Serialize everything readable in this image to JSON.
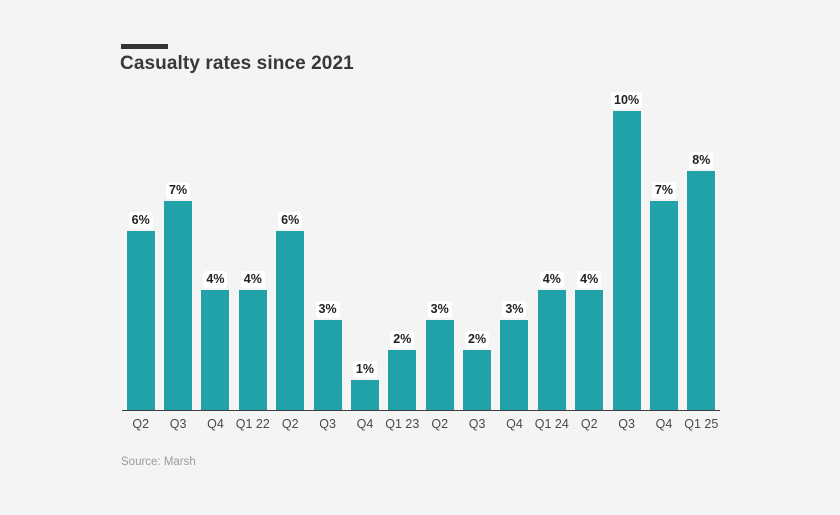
{
  "header": {
    "title": "Casualty rates since 2021"
  },
  "footer": {
    "source": "Source: Marsh"
  },
  "colors": {
    "background": "#f4f4f4",
    "bar": "#21a1a8",
    "title_text": "#383838",
    "axis_line": "#3c3c3c",
    "tick_text": "#4a4a4a",
    "value_label_text": "#222222",
    "source_text": "#9b9b9b"
  },
  "chart_data": {
    "type": "bar",
    "title": "Casualty rates since 2021",
    "categories": [
      "Q2",
      "Q3",
      "Q4",
      "Q1 22",
      "Q2",
      "Q3",
      "Q4",
      "Q1 23",
      "Q2",
      "Q3",
      "Q4",
      "Q1 24",
      "Q2",
      "Q3",
      "Q4",
      "Q1 25"
    ],
    "values": [
      6,
      7,
      4,
      4,
      6,
      3,
      1,
      2,
      3,
      2,
      3,
      4,
      4,
      10,
      7,
      8
    ],
    "value_suffix": "%",
    "value_labels": true,
    "xlabel": "",
    "ylabel": "",
    "ylim": [
      0,
      10
    ],
    "grid": false,
    "legend": false,
    "bar_color": "#21a1a8",
    "source": "Source: Marsh"
  }
}
